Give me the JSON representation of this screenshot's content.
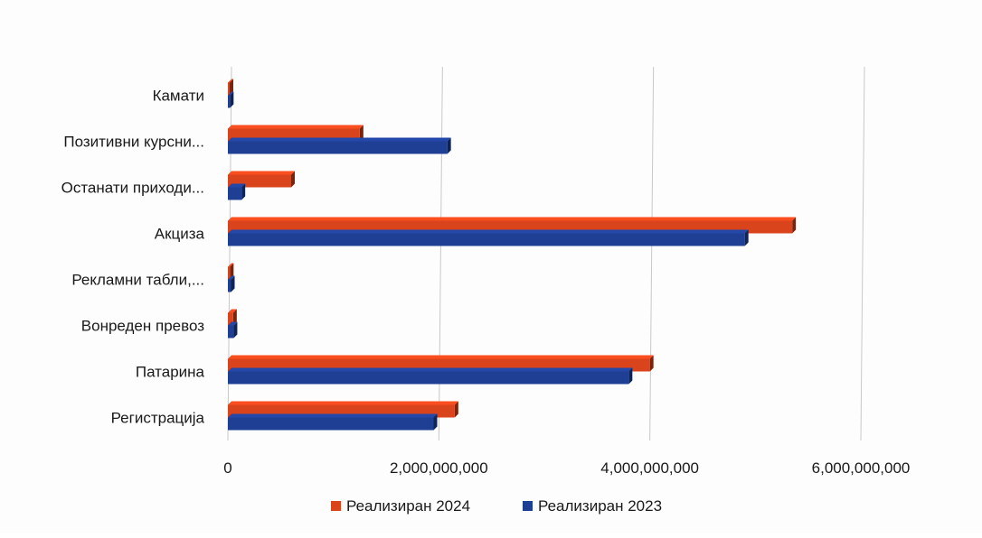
{
  "chart_data": {
    "type": "bar",
    "orientation": "horizontal",
    "categories": [
      "Камати",
      "Позитивни курсни...",
      "Останати приходи...",
      "Акциза",
      "Рекламни табли,...",
      "Вонреден превоз",
      "Патарина",
      "Регистрација"
    ],
    "series": [
      {
        "name": "Реализиран 2024",
        "color": "#d9441c",
        "values": [
          15000000,
          1250000000,
          600000000,
          5350000000,
          20000000,
          50000000,
          4000000000,
          2150000000
        ]
      },
      {
        "name": "Реализиран 2023",
        "color": "#1f3f94",
        "values": [
          20000000,
          2080000000,
          130000000,
          4900000000,
          30000000,
          55000000,
          3800000000,
          1950000000
        ]
      }
    ],
    "xlim": [
      0,
      6000000000
    ],
    "ticks": [
      0,
      2000000000,
      4000000000,
      6000000000
    ],
    "tick_labels": [
      "0",
      "2,000,000,000",
      "4,000,000,000",
      "6,000,000,000"
    ],
    "grid": true,
    "legend_position": "bottom"
  }
}
